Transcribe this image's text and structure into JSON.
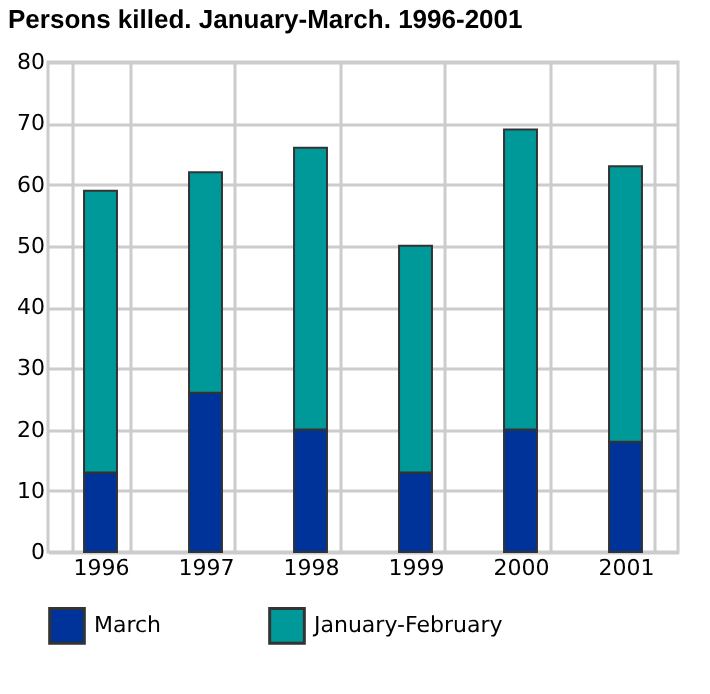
{
  "chart_data": {
    "type": "bar",
    "title": "Persons killed. January-March. 1996-2001",
    "categories": [
      "1996",
      "1997",
      "1998",
      "1999",
      "2000",
      "2001"
    ],
    "stacked": true,
    "series": [
      {
        "name": "March",
        "color": "#003399",
        "values": [
          13,
          26,
          20,
          13,
          20,
          18
        ]
      },
      {
        "name": "January-February",
        "color": "#009999",
        "values": [
          46,
          36,
          46,
          37,
          49,
          45
        ]
      }
    ],
    "ylim": [
      0,
      80
    ],
    "yticks": [
      0,
      10,
      20,
      30,
      40,
      50,
      60,
      70,
      80
    ],
    "grid": true,
    "legend": "bottom"
  }
}
